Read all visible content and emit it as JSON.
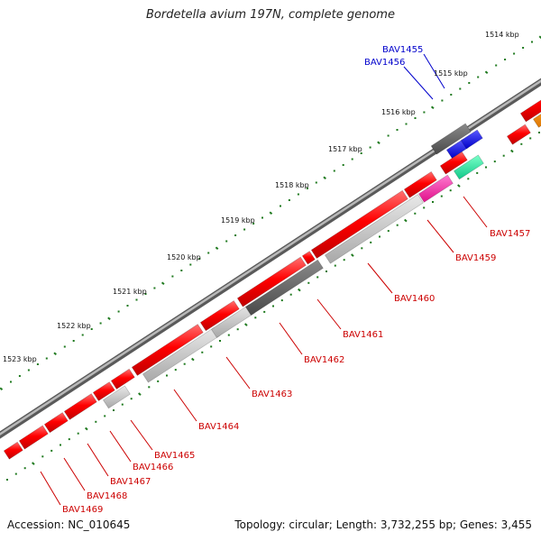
{
  "title": "Bordetella avium 197N, complete genome",
  "footer": {
    "accession": "Accession: NC_010645",
    "summary": "Topology: circular; Length: 3,732,255 bp; Genes: 3,455"
  },
  "colors": {
    "backbone": "#808080",
    "tick": "#1f7a1f",
    "label_red": "#cc0000",
    "label_blue": "#0000cc"
  },
  "ticks": [
    {
      "label": "1514 kbp"
    },
    {
      "label": "1515 kbp"
    },
    {
      "label": "1516 kbp"
    },
    {
      "label": "1517 kbp"
    },
    {
      "label": "1518 kbp"
    },
    {
      "label": "1519 kbp"
    },
    {
      "label": "1520 kbp"
    },
    {
      "label": "1521 kbp"
    },
    {
      "label": "1522 kbp"
    },
    {
      "label": "1523 kbp"
    }
  ],
  "gene_labels": [
    {
      "id": "BAV1455",
      "label": "BAV1455"
    },
    {
      "id": "BAV1456",
      "label": "BAV1456"
    },
    {
      "id": "BAV1457",
      "label": "BAV1457"
    },
    {
      "id": "BAV1459",
      "label": "BAV1459"
    },
    {
      "id": "BAV1460",
      "label": "BAV1460"
    },
    {
      "id": "BAV1461",
      "label": "BAV1461"
    },
    {
      "id": "BAV1462",
      "label": "BAV1462"
    },
    {
      "id": "BAV1463",
      "label": "BAV1463"
    },
    {
      "id": "BAV1464",
      "label": "BAV1464"
    },
    {
      "id": "BAV1465",
      "label": "BAV1465"
    },
    {
      "id": "BAV1466",
      "label": "BAV1466"
    },
    {
      "id": "BAV1467",
      "label": "BAV1467"
    },
    {
      "id": "BAV1468",
      "label": "BAV1468"
    },
    {
      "id": "BAV1469",
      "label": "BAV1469"
    }
  ]
}
